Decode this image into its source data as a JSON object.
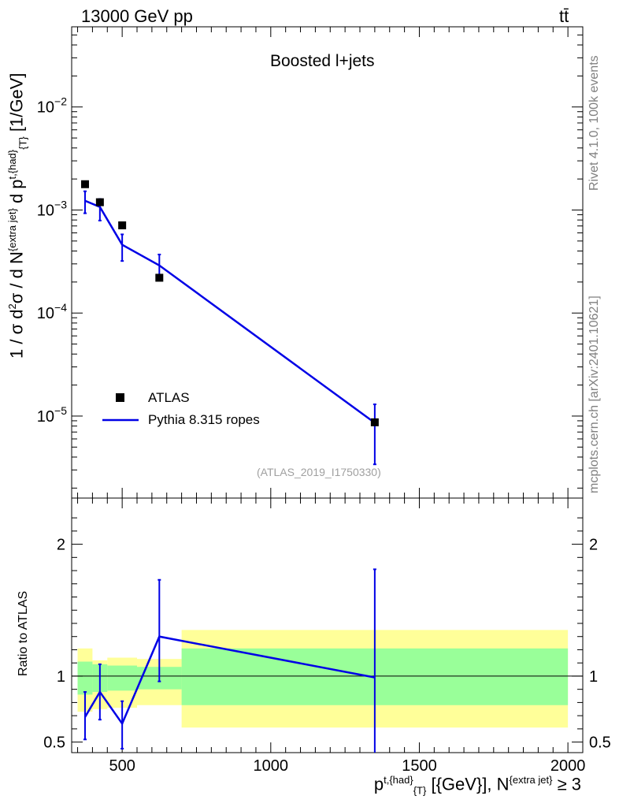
{
  "header": {
    "energy_label": "13000 GeV pp",
    "process_label": "tt̄"
  },
  "side_labels": {
    "rivet": "Rivet 4.1.0,  100k events",
    "source": "mcplots.cern.ch [arXiv:2401.10621]"
  },
  "chart_data": [
    {
      "type": "scatter",
      "title": "Boosted l+jets",
      "analysis_tag": "(ATLAS_2019_I1750330)",
      "xlabel": "p^{t,{had}}_{T} [{GeV}], N^{extra jet} ≥ 3",
      "ylabel": "1 / σ d²σ / d N^{extra jet} d p^{t,{had}}_{T} [1/GeV]",
      "yscale": "log",
      "xlim": [
        330,
        2050
      ],
      "ylim": [
        1.6e-06,
        0.06
      ],
      "xticks": [
        500,
        1000,
        1500,
        2000
      ],
      "yticks": [
        {
          "value": 0.01,
          "base": "10",
          "exp": "−2"
        },
        {
          "value": 0.001,
          "base": "10",
          "exp": "−3"
        },
        {
          "value": 0.0001,
          "base": "10",
          "exp": "−4"
        },
        {
          "value": 1e-05,
          "base": "10",
          "exp": "−5"
        }
      ],
      "legend": {
        "placement": "bottom-left",
        "entries": [
          "ATLAS",
          "Pythia 8.315 ropes"
        ]
      },
      "series": [
        {
          "name": "ATLAS",
          "style": "markers",
          "color": "#000000",
          "x": [
            375,
            425,
            500,
            625,
            1350
          ],
          "y": [
            0.00178,
            0.00119,
            0.00071,
            0.00022,
            8.7e-06
          ]
        },
        {
          "name": "Pythia 8.315 ropes",
          "style": "line",
          "color": "#0000e6",
          "x": [
            375,
            425,
            500,
            625,
            1350
          ],
          "y": [
            0.00123,
            0.00107,
            0.00046,
            0.00029,
            8.6e-06
          ],
          "yerr_low": [
            0.00093,
            0.00079,
            0.00032,
            0.00022,
            3.4e-06
          ],
          "yerr_high": [
            0.00152,
            0.00128,
            0.00058,
            0.00037,
            1.3e-05
          ]
        }
      ]
    },
    {
      "type": "line",
      "ylabel": "Ratio to ATLAS",
      "xlim": [
        330,
        2050
      ],
      "ylim": [
        0.42,
        2.35
      ],
      "yticks": [
        0.5,
        1,
        2
      ],
      "ytick_labels": [
        "0.5",
        "1",
        "2"
      ],
      "reference_line": 1,
      "bands": [
        {
          "x_low": 350,
          "x_high": 400,
          "yellow": [
            0.73,
            1.21
          ],
          "green": [
            0.86,
            1.11
          ]
        },
        {
          "x_low": 400,
          "x_high": 450,
          "yellow": [
            0.75,
            1.12
          ],
          "green": [
            0.88,
            1.09
          ]
        },
        {
          "x_low": 450,
          "x_high": 550,
          "yellow": [
            0.76,
            1.14
          ],
          "green": [
            0.89,
            1.08
          ]
        },
        {
          "x_low": 550,
          "x_high": 700,
          "yellow": [
            0.78,
            1.13
          ],
          "green": [
            0.9,
            1.07
          ]
        },
        {
          "x_low": 700,
          "x_high": 2000,
          "yellow": [
            0.61,
            1.35
          ],
          "green": [
            0.78,
            1.21
          ]
        }
      ],
      "series": [
        {
          "name": "Pythia 8.315 ropes",
          "color": "#0000e6",
          "x": [
            375,
            425,
            500,
            625,
            1350
          ],
          "y": [
            0.69,
            0.88,
            0.64,
            1.3,
            0.99
          ],
          "yerr_low": [
            0.52,
            0.67,
            0.45,
            0.96,
            0.1
          ],
          "yerr_high": [
            0.88,
            1.09,
            0.81,
            1.73,
            1.81
          ]
        }
      ]
    }
  ]
}
